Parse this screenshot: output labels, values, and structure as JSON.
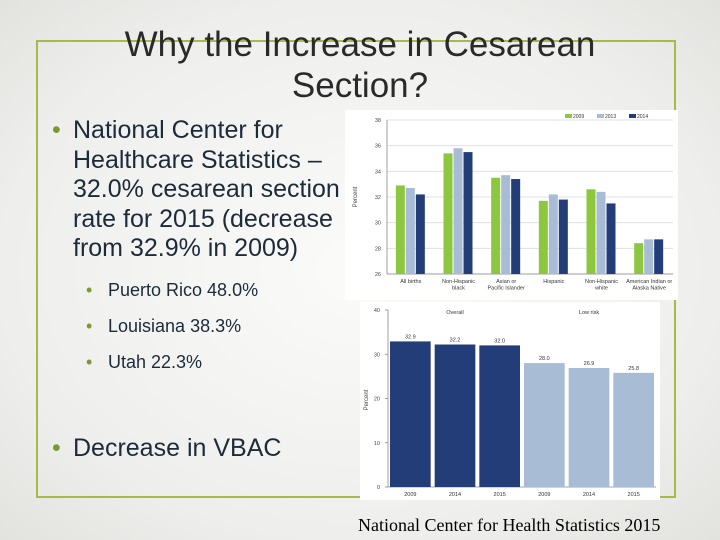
{
  "slide": {
    "title_line1": "Why the Increase in Cesarean",
    "title_line2": "Section?",
    "bullet1": "National Center for Healthcare Statistics – 32.0% cesarean section rate for 2015 (decrease from 32.9% in 2009)",
    "sub_bullets": [
      "Puerto Rico 48.0%",
      "Louisiana 38.3%",
      "Utah 22.3%"
    ],
    "bullet2": "Decrease in VBAC",
    "credit": "National Center for Health Statistics 2015",
    "colors": {
      "frame": "#a7b949",
      "bullet_glyph": "#7a9a2e",
      "text": "#1c2b3a"
    }
  },
  "chart_data": [
    {
      "type": "bar",
      "categories": [
        "All births",
        "Non-Hispanic black",
        "Asian or Pacific Islander",
        "Hispanic",
        "Non-Hispanic white",
        "American Indian or Alaska Native"
      ],
      "series": [
        {
          "name": "2009",
          "color": "#8dc63f",
          "values": [
            32.9,
            35.4,
            33.5,
            31.7,
            32.6,
            28.4
          ]
        },
        {
          "name": "2013",
          "color": "#a9bcd6",
          "values": [
            32.7,
            35.8,
            33.7,
            32.2,
            32.4,
            28.7
          ]
        },
        {
          "name": "2014",
          "color": "#233d79",
          "values": [
            32.2,
            35.5,
            33.4,
            31.8,
            31.5,
            28.7
          ]
        }
      ],
      "ylabel": "Percent",
      "yticks": [
        26,
        28,
        30,
        32,
        34,
        36,
        38
      ],
      "ylim": [
        26,
        38
      ],
      "legend": "top-right"
    },
    {
      "type": "bar",
      "categories": [
        "2009",
        "2014",
        "2015",
        "2009",
        "2014",
        "2015"
      ],
      "groups": [
        "Overall",
        "Low risk"
      ],
      "values": [
        32.9,
        32.2,
        32.0,
        28.0,
        26.9,
        25.8
      ],
      "colors": [
        "#233d79",
        "#233d79",
        "#233d79",
        "#a9bcd6",
        "#a9bcd6",
        "#a9bcd6"
      ],
      "ylabel": "Percent",
      "yticks": [
        0,
        10,
        20,
        30,
        40
      ],
      "ylim": [
        0,
        40
      ]
    }
  ]
}
